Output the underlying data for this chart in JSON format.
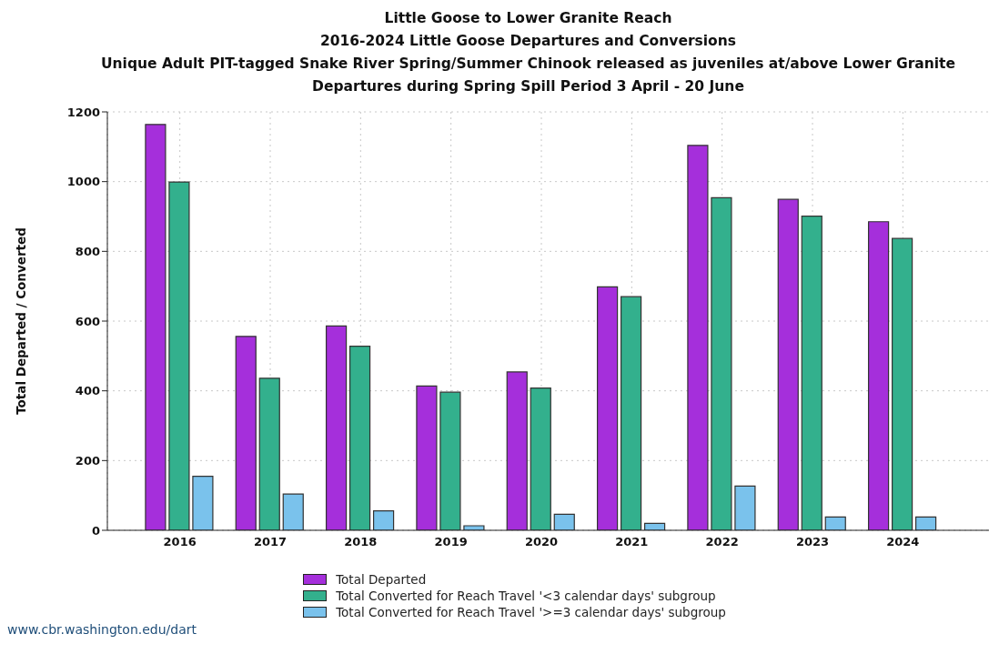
{
  "chart_data": {
    "type": "bar",
    "title": "Little Goose to Lower Granite Reach\n2016-2024 Little Goose Departures and Conversions\nUnique Adult PIT-tagged Snake River Spring/Summer Chinook released as juveniles at/above Lower Granite\nDepartures during Spring Spill Period 3 April - 20 June",
    "ylabel": "Total Departed / Converted",
    "categories": [
      "2016",
      "2017",
      "2018",
      "2019",
      "2020",
      "2021",
      "2022",
      "2023",
      "2024"
    ],
    "series": [
      {
        "name": "Total Departed",
        "color": "#a52fdb",
        "values": [
          1164,
          556,
          586,
          414,
          454,
          698,
          1104,
          949,
          885
        ]
      },
      {
        "name": "Total Converted for Reach Travel '<3 calendar days' subgroup",
        "color": "#33b08d",
        "values": [
          999,
          436,
          528,
          396,
          408,
          670,
          954,
          901,
          837
        ]
      },
      {
        "name": "Total Converted for Reach Travel '>=3 calendar days' subgroup",
        "color": "#7ac2ec",
        "values": [
          155,
          104,
          56,
          13,
          46,
          20,
          127,
          38,
          38
        ]
      }
    ],
    "ylim": [
      0,
      1200
    ],
    "yticks": [
      0,
      200,
      400,
      600,
      800,
      1000,
      1200
    ],
    "grid": true,
    "legend": "bottom",
    "annotations": [
      "www.cbr.washington.edu/dart"
    ]
  }
}
